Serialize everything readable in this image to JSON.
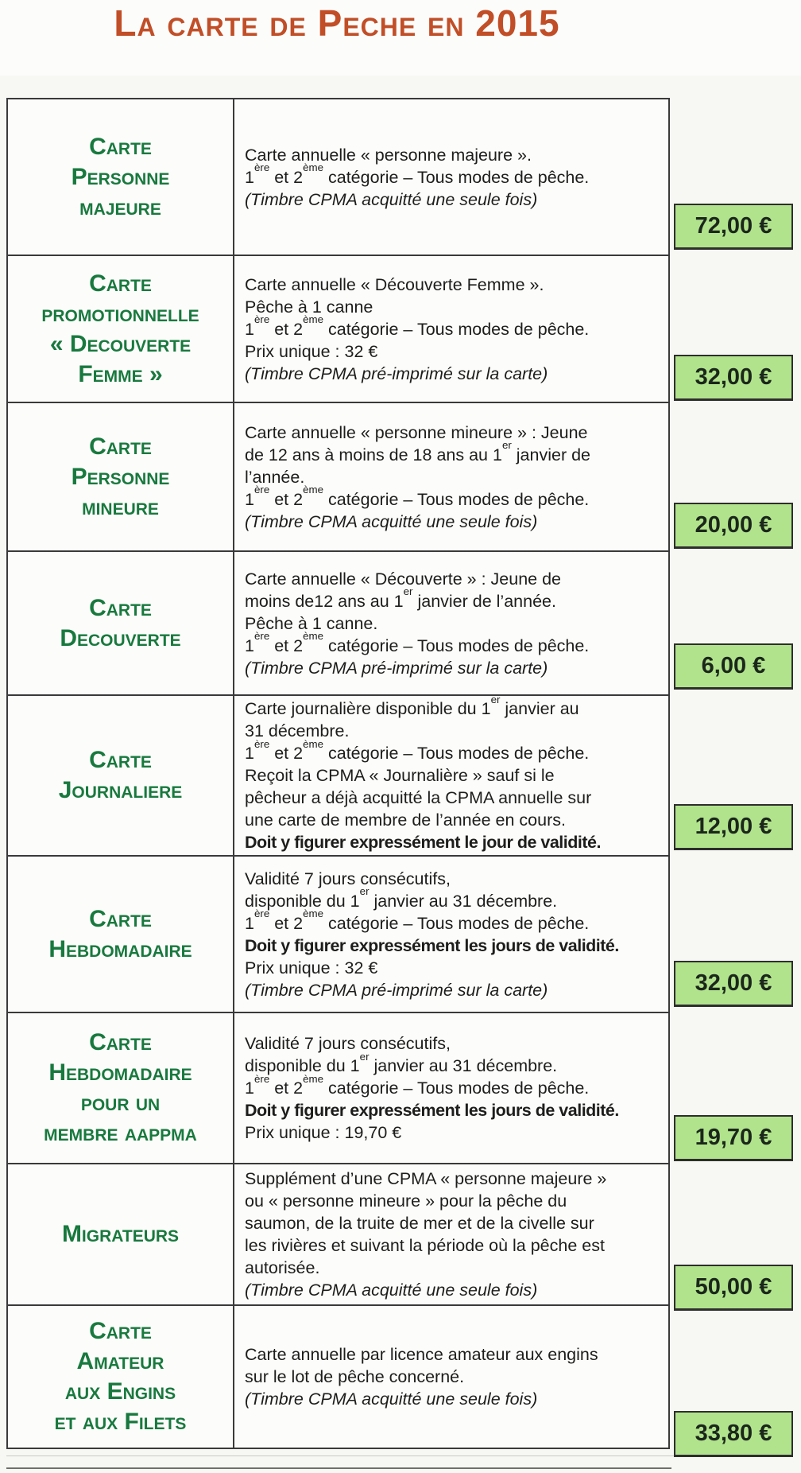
{
  "title": "La carte de Peche en 2015",
  "colors": {
    "title_orange": "#c14e27",
    "card_name_green": "#18793e",
    "price_badge_green": "#b1e38c",
    "table_border": "#3a3a3a"
  },
  "table": {
    "rows": [
      {
        "name_lines": [
          "Carte",
          "Personne",
          "majeure"
        ],
        "desc_lines": [
          [
            {
              "t": "Carte annuelle « personne majeure »."
            }
          ],
          [
            {
              "t": "1"
            },
            {
              "t": "ère",
              "s": "sup"
            },
            {
              "t": " et 2"
            },
            {
              "t": "ème",
              "s": "sup"
            },
            {
              "t": " catégorie – Tous modes de pêche."
            }
          ],
          [
            {
              "t": "(Timbre CPMA acquitté une seule fois)",
              "s": "i"
            }
          ]
        ],
        "price": "72,00 €"
      },
      {
        "name_lines": [
          "Carte",
          "promotionnelle",
          "« Decouverte",
          "Femme »"
        ],
        "desc_lines": [
          [
            {
              "t": "Carte annuelle « Découverte Femme »."
            }
          ],
          [
            {
              "t": "Pêche à 1 canne"
            }
          ],
          [
            {
              "t": "1"
            },
            {
              "t": "ère",
              "s": "sup"
            },
            {
              "t": " et 2"
            },
            {
              "t": "ème",
              "s": "sup"
            },
            {
              "t": " catégorie – Tous modes de pêche."
            }
          ],
          [
            {
              "t": "Prix unique : 32 €"
            }
          ],
          [
            {
              "t": "(Timbre CPMA pré-imprimé sur la carte)",
              "s": "i"
            }
          ]
        ],
        "price": "32,00 €"
      },
      {
        "name_lines": [
          "Carte",
          "Personne",
          "mineure"
        ],
        "desc_lines": [
          [
            {
              "t": "Carte annuelle « personne mineure » : Jeune"
            }
          ],
          [
            {
              "t": "de 12 ans à moins de 18 ans au 1"
            },
            {
              "t": "er",
              "s": "sup"
            },
            {
              "t": " janvier de"
            }
          ],
          [
            {
              "t": "l’année."
            }
          ],
          [
            {
              "t": "1"
            },
            {
              "t": "ère",
              "s": "sup"
            },
            {
              "t": " et 2"
            },
            {
              "t": "ème",
              "s": "sup"
            },
            {
              "t": " catégorie – Tous modes de pêche."
            }
          ],
          [
            {
              "t": "(Timbre CPMA acquitté une seule fois)",
              "s": "i"
            }
          ]
        ],
        "price": "20,00 €"
      },
      {
        "name_lines": [
          "Carte",
          "Decouverte"
        ],
        "desc_lines": [
          [
            {
              "t": "Carte annuelle « Découverte » : Jeune de"
            }
          ],
          [
            {
              "t": "moins de12 ans au 1"
            },
            {
              "t": "er",
              "s": "sup"
            },
            {
              "t": " janvier de l’année."
            }
          ],
          [
            {
              "t": "Pêche à 1 canne."
            }
          ],
          [
            {
              "t": "1"
            },
            {
              "t": "ère",
              "s": "sup"
            },
            {
              "t": " et 2"
            },
            {
              "t": "ème",
              "s": "sup"
            },
            {
              "t": " catégorie – Tous modes de pêche."
            }
          ],
          [
            {
              "t": "(Timbre CPMA pré-imprimé sur la carte)",
              "s": "i"
            }
          ]
        ],
        "price": "6,00 €"
      },
      {
        "name_lines": [
          "Carte",
          "Journaliere"
        ],
        "desc_lines": [
          [
            {
              "t": "Carte journalière disponible du 1"
            },
            {
              "t": "er",
              "s": "sup"
            },
            {
              "t": " janvier au"
            }
          ],
          [
            {
              "t": "31 décembre."
            }
          ],
          [
            {
              "t": "1"
            },
            {
              "t": "ère",
              "s": "sup"
            },
            {
              "t": " et 2"
            },
            {
              "t": "ème",
              "s": "sup"
            },
            {
              "t": " catégorie – Tous modes de pêche."
            }
          ],
          [
            {
              "t": "Reçoit la CPMA « Journalière » sauf si le"
            }
          ],
          [
            {
              "t": "pêcheur a déjà acquitté la CPMA annuelle sur"
            }
          ],
          [
            {
              "t": "une carte de membre de l’année en cours."
            }
          ],
          [
            {
              "t": "Doit y figurer expressément le jour de validité.",
              "s": "b"
            }
          ]
        ],
        "price": "12,00 €"
      },
      {
        "name_lines": [
          "Carte",
          "Hebdomadaire"
        ],
        "desc_lines": [
          [
            {
              "t": "Validité 7  jours consécutifs,"
            }
          ],
          [
            {
              "t": "disponible du 1"
            },
            {
              "t": "er",
              "s": "sup"
            },
            {
              "t": " janvier au 31 décembre."
            }
          ],
          [
            {
              "t": "1"
            },
            {
              "t": "ère",
              "s": "sup"
            },
            {
              "t": " et 2"
            },
            {
              "t": "ème",
              "s": "sup"
            },
            {
              "t": " catégorie – Tous modes de pêche."
            }
          ],
          [
            {
              "t": "Doit y figurer expressément les jours de validité.",
              "s": "b"
            }
          ],
          [
            {
              "t": "Prix unique : 32 €"
            }
          ],
          [
            {
              "t": "(Timbre CPMA pré-imprimé sur la carte)",
              "s": "i"
            }
          ]
        ],
        "price": "32,00 €"
      },
      {
        "name_lines": [
          "Carte",
          "Hebdomadaire",
          "pour un",
          "membre aappma"
        ],
        "desc_lines": [
          [
            {
              "t": "Validité 7  jours consécutifs,"
            }
          ],
          [
            {
              "t": "disponible du 1"
            },
            {
              "t": "er",
              "s": "sup"
            },
            {
              "t": " janvier au 31 décembre."
            }
          ],
          [
            {
              "t": "1"
            },
            {
              "t": "ère",
              "s": "sup"
            },
            {
              "t": " et 2"
            },
            {
              "t": "ème",
              "s": "sup"
            },
            {
              "t": " catégorie – Tous modes de pêche."
            }
          ],
          [
            {
              "t": "Doit y figurer expressément les jours de validité.",
              "s": "b"
            }
          ],
          [
            {
              "t": "Prix unique : 19,70 €"
            }
          ]
        ],
        "price": "19,70 €"
      },
      {
        "name_lines": [
          "Migrateurs"
        ],
        "desc_lines": [
          [
            {
              "t": "Supplément d’une CPMA « personne majeure »"
            }
          ],
          [
            {
              "t": "ou « personne mineure » pour la pêche du"
            }
          ],
          [
            {
              "t": "saumon, de la truite de mer et de la civelle sur"
            }
          ],
          [
            {
              "t": "les rivières et suivant la période où la pêche est"
            }
          ],
          [
            {
              "t": "autorisée."
            }
          ],
          [
            {
              "t": "(Timbre CPMA acquitté une seule fois)",
              "s": "i"
            }
          ]
        ],
        "price": "50,00 €"
      },
      {
        "name_lines": [
          "Carte",
          "Amateur",
          "aux Engins",
          "et aux Filets"
        ],
        "desc_lines": [
          [
            {
              "t": "Carte annuelle par licence amateur aux engins"
            }
          ],
          [
            {
              "t": "sur le lot de pêche concerné."
            }
          ],
          [
            {
              "t": "(Timbre CPMA acquitté une seule fois)",
              "s": "i"
            }
          ]
        ],
        "price": "33,80 €"
      }
    ]
  }
}
